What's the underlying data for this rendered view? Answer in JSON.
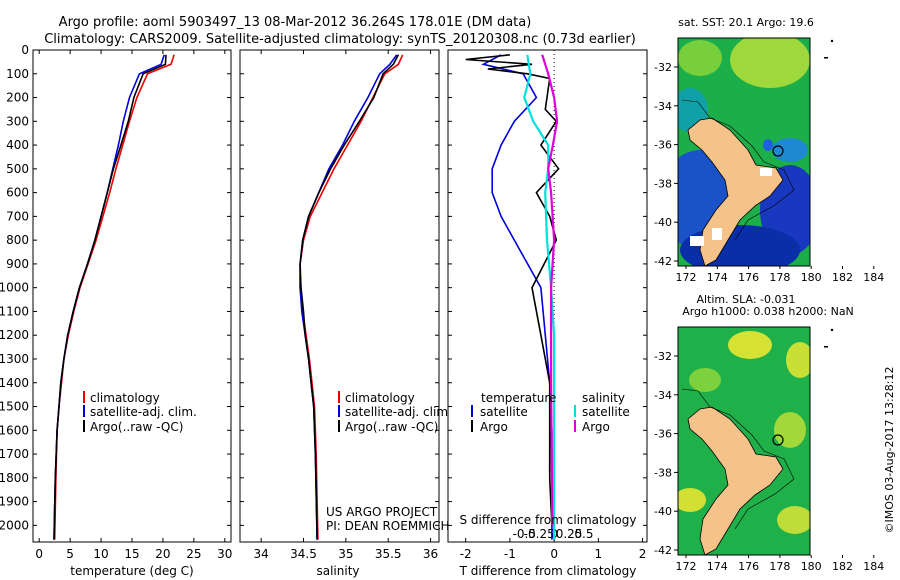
{
  "header": {
    "line1": "Argo profile: aoml 5903497_13 08-Mar-2012 36.264S 178.01E (DM data)",
    "line2": "Climatology: CARS2009. Satellite-adjusted climatology: synTS_20120308.nc (0.73d earlier)"
  },
  "colors": {
    "climatology": "#ee0000",
    "satellite": "#0000dd",
    "argo": "#000000",
    "salinity_satellite": "#00e0e0",
    "salinity_argo": "#dd00dd"
  },
  "legend": {
    "climatology": "climatology",
    "satellite_adj": "satellite-adj. clim.",
    "argo_raw": "Argo(..raw -QC)",
    "temperature": "temperature",
    "salinity": "salinity",
    "satellite": "satellite",
    "argo": "Argo"
  },
  "project_note": {
    "line1": "US ARGO PROJECT",
    "line2": "PI: DEAN ROEMMICH"
  },
  "credit": "©IMOS 03-Aug-2017 13:28:12",
  "maps": {
    "sst_title": "sat. SST: 20.1  Argo: 19.6",
    "sla_title1": "Altim. SLA: -0.031",
    "sla_title2": "Argo h1000: 0.038 h2000: NaN",
    "lon_ticks": [
      "172",
      "174",
      "176",
      "178",
      "180",
      "182",
      "184"
    ],
    "lat_ticks": [
      "-32",
      "-34",
      "-36",
      "-38",
      "-40",
      "-42"
    ]
  },
  "chart_data": [
    {
      "type": "line",
      "xlabel": "temperature (deg C)",
      "ylabel": "",
      "xlim": [
        -1,
        31
      ],
      "ylim": [
        2070,
        0
      ],
      "xticks": [
        "0",
        "5",
        "10",
        "15",
        "20",
        "25",
        "30"
      ],
      "yticks": [
        "0",
        "100",
        "200",
        "300",
        "400",
        "500",
        "600",
        "700",
        "800",
        "900",
        "1000",
        "1100",
        "1200",
        "1300",
        "1400",
        "1500",
        "1600",
        "1700",
        "1800",
        "1900",
        "2000"
      ],
      "series": [
        {
          "name": "climatology",
          "color": "#ee0000",
          "x": [
            21.8,
            21.3,
            17.5,
            15.8,
            14.6,
            13.5,
            12.4,
            11.4,
            10.3,
            9.2,
            7.9,
            6.6,
            5.6,
            4.7,
            4.0,
            3.6,
            3.2,
            2.9,
            2.7,
            2.5
          ],
          "y": [
            20,
            60,
            100,
            200,
            300,
            400,
            500,
            600,
            700,
            800,
            900,
            1000,
            1100,
            1200,
            1300,
            1400,
            1500,
            1600,
            1800,
            2060
          ]
        },
        {
          "name": "satellite-adj. clim.",
          "color": "#0000dd",
          "x": [
            20.2,
            19.7,
            16.2,
            14.6,
            13.6,
            12.8,
            11.9,
            11.0,
            10.0,
            9.0,
            7.8,
            6.5,
            5.5,
            4.6,
            4.0,
            3.5,
            3.2,
            2.9,
            2.6,
            2.4
          ],
          "y": [
            20,
            60,
            100,
            200,
            300,
            400,
            500,
            600,
            700,
            800,
            900,
            1000,
            1100,
            1200,
            1300,
            1400,
            1500,
            1600,
            1800,
            2060
          ]
        },
        {
          "name": "Argo(..raw -QC)",
          "color": "#000000",
          "x": [
            20.5,
            20.4,
            16.8,
            15.3,
            14.4,
            13.2,
            12.0,
            11.0,
            10.0,
            9.0,
            7.8,
            6.5,
            5.5,
            4.6,
            4.0,
            3.5,
            3.2,
            2.9,
            2.6,
            2.4
          ],
          "y": [
            20,
            60,
            100,
            200,
            300,
            400,
            500,
            600,
            700,
            800,
            900,
            1000,
            1100,
            1200,
            1300,
            1400,
            1500,
            1600,
            1800,
            2060
          ]
        }
      ]
    },
    {
      "type": "line",
      "xlabel": "salinity",
      "ylabel": "",
      "xlim": [
        33.75,
        36.1
      ],
      "ylim": [
        2070,
        0
      ],
      "xticks": [
        "34",
        "34.5",
        "35",
        "35.5",
        "36"
      ],
      "series": [
        {
          "name": "climatology",
          "color": "#ee0000",
          "x": [
            35.67,
            35.62,
            35.46,
            35.32,
            35.18,
            35.02,
            34.86,
            34.72,
            34.58,
            34.5,
            34.46,
            34.46,
            34.49,
            34.53,
            34.57,
            34.6,
            34.63,
            34.65,
            34.67
          ],
          "y": [
            20,
            60,
            100,
            200,
            300,
            400,
            500,
            600,
            700,
            800,
            900,
            1000,
            1100,
            1200,
            1300,
            1400,
            1500,
            1700,
            2060
          ]
        },
        {
          "name": "satellite-adj. clim.",
          "color": "#0000dd",
          "x": [
            35.6,
            35.52,
            35.4,
            35.26,
            35.1,
            34.96,
            34.8,
            34.68,
            34.56,
            34.49,
            34.46,
            34.46,
            34.48,
            34.52,
            34.56,
            34.59,
            34.62,
            34.64,
            34.66
          ],
          "y": [
            20,
            60,
            100,
            200,
            300,
            400,
            500,
            600,
            700,
            800,
            900,
            1000,
            1100,
            1200,
            1300,
            1400,
            1500,
            1700,
            2060
          ]
        },
        {
          "name": "Argo(..raw -QC)",
          "color": "#000000",
          "x": [
            35.62,
            35.56,
            35.44,
            35.33,
            35.16,
            34.98,
            34.82,
            34.68,
            34.56,
            34.49,
            34.46,
            34.47,
            34.5,
            34.52,
            34.56,
            34.59,
            34.62,
            34.64,
            34.66
          ],
          "y": [
            20,
            60,
            100,
            200,
            300,
            400,
            500,
            600,
            700,
            800,
            900,
            1000,
            1100,
            1200,
            1300,
            1400,
            1500,
            1700,
            2060
          ]
        }
      ]
    },
    {
      "type": "line",
      "xlabel": "T difference from climatology",
      "top_label": "S difference from climatology",
      "xlim": [
        -2.4,
        2.1
      ],
      "ylim": [
        2070,
        0
      ],
      "xticks": [
        "-2",
        "-1",
        "0",
        "1",
        "2"
      ],
      "sticks": [
        "-0.5",
        "-0.25",
        "0",
        "0.25",
        "0.5"
      ],
      "series": [
        {
          "name": "temperature satellite",
          "color": "#0000dd",
          "x": [
            -1.2,
            -1.6,
            -0.7,
            -0.4,
            -0.9,
            -1.2,
            -1.4,
            -1.4,
            -1.2,
            -0.9,
            -0.6,
            -0.3,
            -0.2,
            -0.1,
            -0.05,
            -0.05,
            -0.05
          ],
          "y": [
            20,
            60,
            100,
            200,
            300,
            400,
            500,
            600,
            700,
            800,
            900,
            1000,
            1200,
            1400,
            1600,
            1800,
            2060
          ]
        },
        {
          "name": "temperature Argo",
          "color": "#000000",
          "x": [
            -1.0,
            -2.0,
            -0.5,
            -1.5,
            -0.6,
            -0.1,
            -0.2,
            0.05,
            -0.3,
            0.1,
            -0.4,
            -0.1,
            0.05,
            -0.5,
            -0.3,
            -0.1,
            -0.1,
            -0.1,
            -0.05
          ],
          "y": [
            20,
            40,
            60,
            80,
            100,
            120,
            250,
            300,
            400,
            500,
            600,
            700,
            800,
            1000,
            1200,
            1400,
            1600,
            1800,
            2000
          ]
        },
        {
          "name": "salinity satellite",
          "color": "#00e0e0",
          "x": [
            -0.45,
            -0.4,
            -0.5,
            -0.35,
            -0.1,
            -0.1,
            -0.15,
            -0.12,
            -0.05,
            0.0,
            0.0,
            0.0,
            0.0
          ],
          "y": [
            20,
            100,
            200,
            300,
            400,
            500,
            600,
            800,
            1000,
            1200,
            1400,
            1800,
            2060
          ]
        },
        {
          "name": "salinity Argo",
          "color": "#dd00dd",
          "x": [
            -0.2,
            -0.15,
            -0.1,
            0.0,
            0.05,
            -0.02,
            -0.1,
            -0.05,
            0.0,
            -0.05,
            -0.05,
            -0.03
          ],
          "y": [
            20,
            60,
            100,
            200,
            300,
            400,
            500,
            600,
            800,
            1000,
            1400,
            2000
          ]
        }
      ]
    }
  ]
}
